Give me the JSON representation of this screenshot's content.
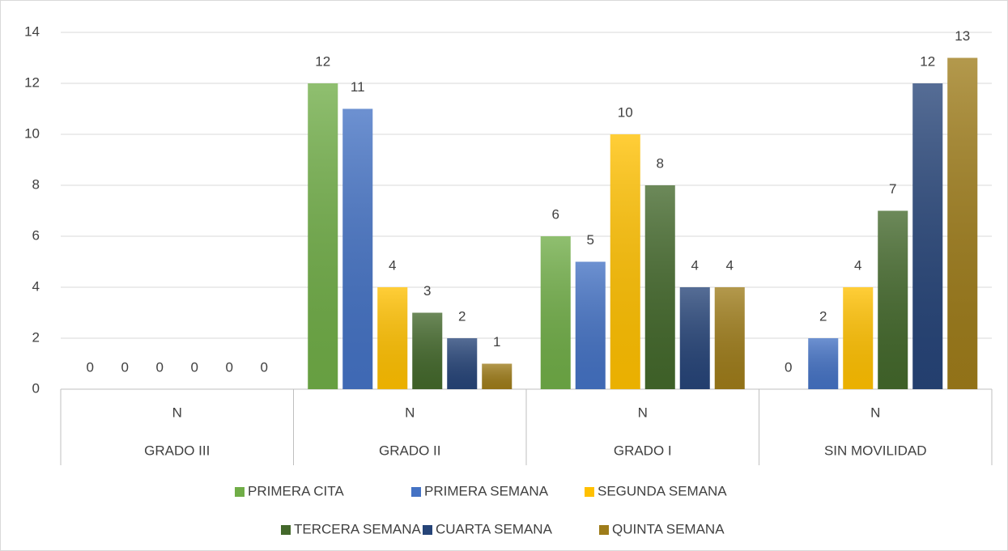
{
  "chart_data": {
    "type": "bar",
    "categories": [
      "GRADO III",
      "GRADO II",
      "GRADO I",
      "SIN MOVILIDAD"
    ],
    "subcategories": [
      "N",
      "N",
      "N",
      "N"
    ],
    "series": [
      {
        "name": "PRIMERA CITA",
        "color": "#70ad47",
        "values": [
          0,
          12,
          6,
          0
        ]
      },
      {
        "name": "PRIMERA SEMANA",
        "color": "#4472c4",
        "values": [
          0,
          11,
          5,
          2
        ]
      },
      {
        "name": "SEGUNDA SEMANA",
        "color": "#ffc000",
        "values": [
          0,
          4,
          10,
          4
        ]
      },
      {
        "name": "TERCERA SEMANA",
        "color": "#43682b",
        "values": [
          0,
          3,
          8,
          7
        ]
      },
      {
        "name": "CUARTA SEMANA",
        "color": "#264478",
        "values": [
          0,
          2,
          4,
          12
        ]
      },
      {
        "name": "QUINTA SEMANA",
        "color": "#9e7c1a",
        "values": [
          0,
          1,
          4,
          13
        ]
      }
    ],
    "ylim": [
      0,
      14
    ],
    "yticks": [
      0,
      2,
      4,
      6,
      8,
      10,
      12,
      14
    ],
    "grid": true,
    "legend": "bottom"
  }
}
